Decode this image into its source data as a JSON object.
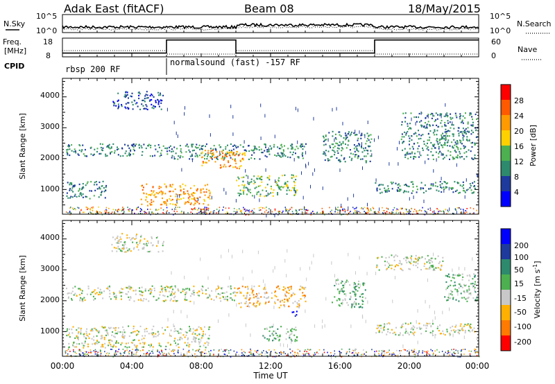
{
  "header": {
    "station": "Adak East (fitACF)",
    "beam": "Beam 08",
    "date": "18/May/2015"
  },
  "noise_panel": {
    "left_label": "N.Sky",
    "right_label": "N.Search",
    "left_ticks": [
      "10^5",
      "10^0"
    ],
    "right_ticks": [
      "10^5",
      "10^0"
    ]
  },
  "freq_panel": {
    "left_label_1": "Freq.",
    "left_label_2": "[MHz]",
    "right_label": "Nave",
    "left_ticks": [
      "18",
      "8"
    ],
    "right_ticks": [
      "60",
      "0"
    ]
  },
  "cpid": {
    "label": "CPID",
    "programs": [
      "rbsp 200 RF",
      "normalsound (fast) -157 RF"
    ]
  },
  "time_axis": {
    "label": "Time UT",
    "ticks": [
      "00:00",
      "04:00",
      "08:00",
      "12:00",
      "16:00",
      "20:00",
      "00:00"
    ]
  },
  "range_axis": {
    "label": "Slant Range [km]",
    "ticks": [
      "1000",
      "2000",
      "3000",
      "4000"
    ]
  },
  "power_scale": {
    "label": "Power [dB]",
    "ticks": [
      "4",
      "8",
      "12",
      "16",
      "20",
      "24",
      "28"
    ],
    "colors": [
      "#0000ff",
      "#1e3a9c",
      "#2e8a6c",
      "#4cb050",
      "#ffd000",
      "#ff9a00",
      "#ff5a00",
      "#ff0000"
    ]
  },
  "velocity_scale": {
    "label": "Velocity [m s",
    "label_sup": "-1",
    "label_end": "]",
    "ticks": [
      "200",
      "100",
      "50",
      "15",
      "-15",
      "-50",
      "-100",
      "-200"
    ],
    "colors": [
      "#0000ff",
      "#1e3a9c",
      "#2e8a6c",
      "#4cb050",
      "#c8c8c8",
      "#ffb000",
      "#ff7a00",
      "#ff0000"
    ]
  },
  "chart_data": {
    "type": "heatmap",
    "x_range_hours": [
      0,
      24
    ],
    "y_range_km": [
      200,
      4600
    ],
    "cpid_change_hour": 6,
    "frequency_steps": [
      {
        "start": 0,
        "end": 6,
        "freq_mhz": 10
      },
      {
        "start": 6,
        "end": 10,
        "freq_mhz": 17
      },
      {
        "start": 10,
        "end": 18,
        "freq_mhz": 10
      },
      {
        "start": 18,
        "end": 24,
        "freq_mhz": 17
      }
    ],
    "power_regions": [
      {
        "t0": 0.2,
        "t1": 6.0,
        "r0": 2100,
        "r1": 2500,
        "level": 2
      },
      {
        "t0": 6.0,
        "t1": 14.0,
        "r0": 2000,
        "r1": 2500,
        "level": 2
      },
      {
        "t0": 8.0,
        "t1": 10.5,
        "r0": 1700,
        "r1": 2300,
        "level": 5
      },
      {
        "t0": 0.2,
        "t1": 2.5,
        "r0": 700,
        "r1": 1300,
        "level": 2
      },
      {
        "t0": 4.5,
        "t1": 8.5,
        "r0": 500,
        "r1": 1200,
        "level": 5
      },
      {
        "t0": 10.0,
        "t1": 13.5,
        "r0": 800,
        "r1": 1500,
        "level": 3
      },
      {
        "t0": 15.0,
        "t1": 17.8,
        "r0": 1900,
        "r1": 2900,
        "level": 2
      },
      {
        "t0": 18.0,
        "t1": 23.8,
        "r0": 900,
        "r1": 1300,
        "level": 2
      },
      {
        "t0": 19.5,
        "t1": 23.9,
        "r0": 2000,
        "r1": 3500,
        "level": 2
      },
      {
        "t0": 2.8,
        "t1": 5.8,
        "r0": 3600,
        "r1": 4200,
        "level": 1
      }
    ],
    "velocity_regions": [
      {
        "t0": 0.2,
        "t1": 10.0,
        "r0": 2000,
        "r1": 2500,
        "level": 4
      },
      {
        "t0": 0.2,
        "t1": 8.5,
        "r0": 500,
        "r1": 1200,
        "level": 4
      },
      {
        "t0": 10.0,
        "t1": 14.0,
        "r0": 1800,
        "r1": 2500,
        "level": 5
      },
      {
        "t0": 11.5,
        "t1": 13.5,
        "r0": 700,
        "r1": 1200,
        "level": 3
      },
      {
        "t0": 13.2,
        "t1": 13.5,
        "r0": 1500,
        "r1": 1800,
        "level": 0
      },
      {
        "t0": 15.5,
        "t1": 17.5,
        "r0": 1800,
        "r1": 2700,
        "level": 3
      },
      {
        "t0": 18.0,
        "t1": 23.8,
        "r0": 900,
        "r1": 1300,
        "level": 4
      },
      {
        "t0": 18.0,
        "t1": 22.0,
        "r0": 3000,
        "r1": 3500,
        "level": 4
      },
      {
        "t0": 22.0,
        "t1": 23.9,
        "r0": 2000,
        "r1": 2900,
        "level": 3
      },
      {
        "t0": 2.8,
        "t1": 5.8,
        "r0": 3600,
        "r1": 4200,
        "level": 4
      }
    ]
  }
}
